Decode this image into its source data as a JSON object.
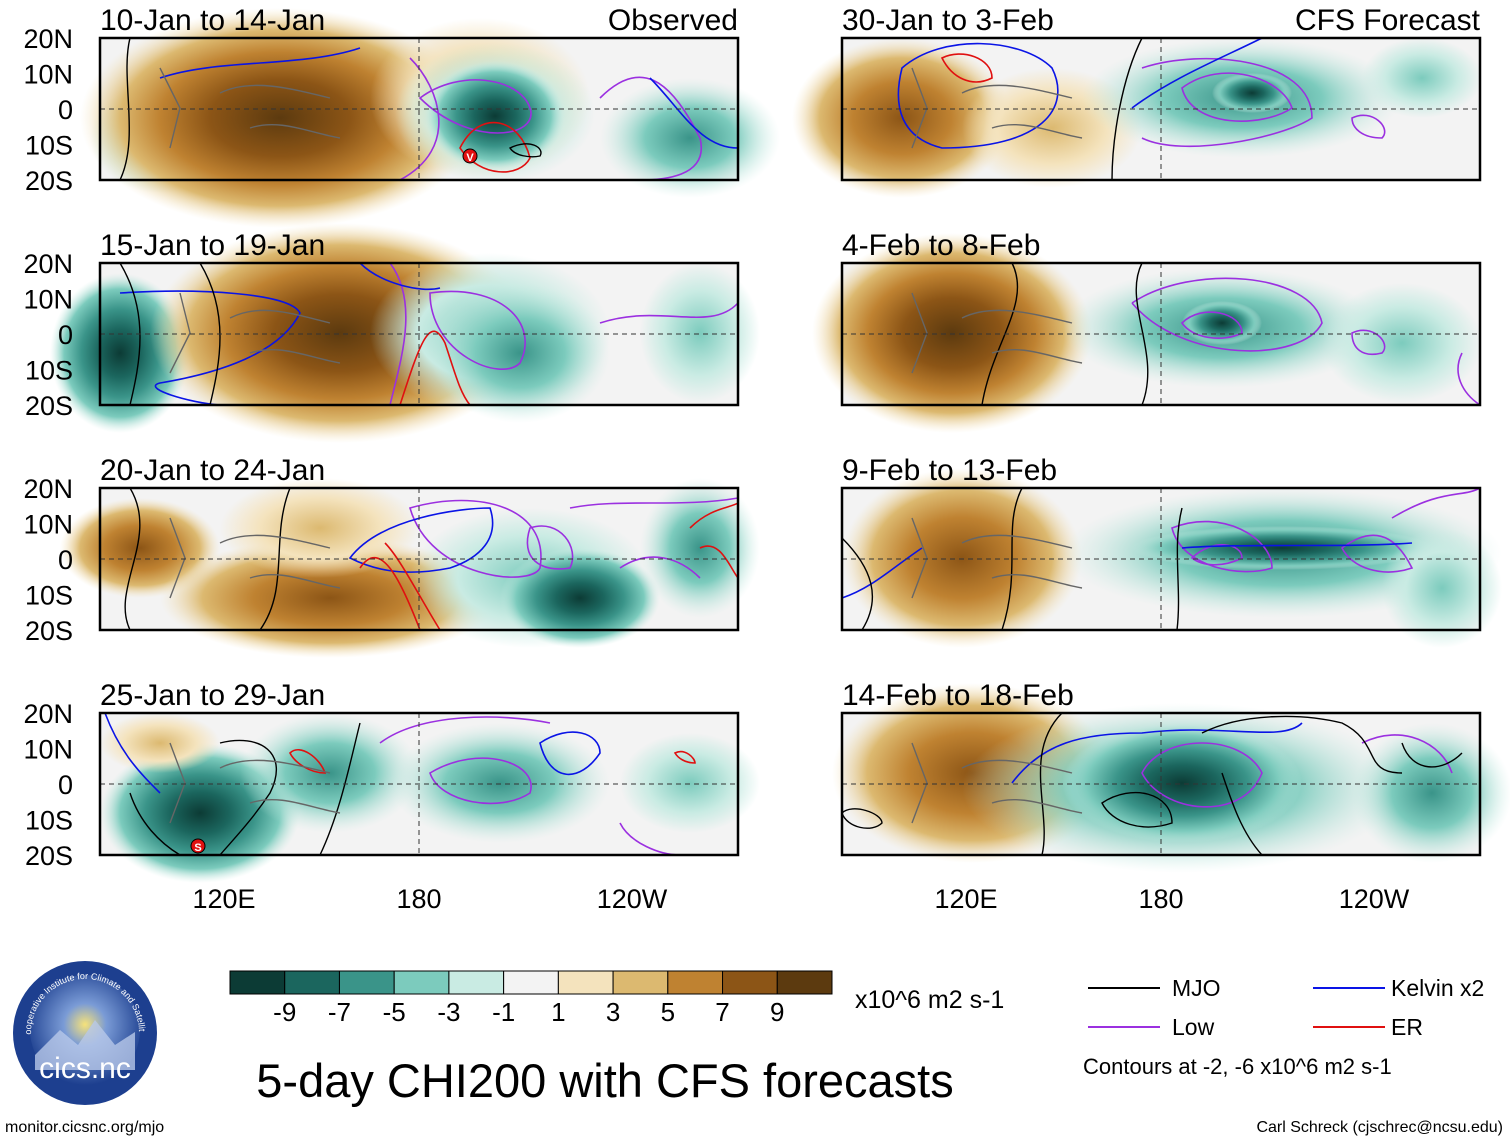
{
  "chart_data": {
    "type": "heatmap",
    "title": "5-day CHI200 with CFS forecasts",
    "variable": "CHI200",
    "units": "x10^6 m2 s-1",
    "colorbar": {
      "labels": [
        "-9",
        "-7",
        "-5",
        "-3",
        "-1",
        "1",
        "3",
        "5",
        "7",
        "9"
      ],
      "colors": [
        "#0c3b35",
        "#1b665e",
        "#3a9489",
        "#7ccbbd",
        "#c9ebe3",
        "#f3f3f3",
        "#f4e3bd",
        "#dcb970",
        "#bf8231",
        "#8c5516",
        "#5c3a0f"
      ]
    },
    "x_ticks": [
      "120E",
      "180",
      "120W"
    ],
    "y_ticks": [
      "20N",
      "10N",
      "0",
      "10S",
      "20S"
    ],
    "panel_titles": {
      "observed": "Observed",
      "forecast": "CFS Forecast"
    },
    "panels": [
      {
        "id": "p1",
        "period": "10-Jan to 14-Jan",
        "source": "Observed",
        "marker": "V"
      },
      {
        "id": "p2",
        "period": "15-Jan to 19-Jan",
        "source": "Observed",
        "marker": ""
      },
      {
        "id": "p3",
        "period": "20-Jan to 24-Jan",
        "source": "Observed",
        "marker": ""
      },
      {
        "id": "p4",
        "period": "25-Jan to 29-Jan",
        "source": "Observed",
        "marker": "S"
      },
      {
        "id": "p5",
        "period": "30-Jan to 3-Feb",
        "source": "CFS Forecast",
        "marker": ""
      },
      {
        "id": "p6",
        "period": "4-Feb to 8-Feb",
        "source": "CFS Forecast",
        "marker": ""
      },
      {
        "id": "p7",
        "period": "9-Feb to 13-Feb",
        "source": "CFS Forecast",
        "marker": ""
      },
      {
        "id": "p8",
        "period": "14-Feb to 18-Feb",
        "source": "CFS Forecast",
        "marker": ""
      }
    ],
    "legend": [
      {
        "label": "MJO",
        "color": "#000000"
      },
      {
        "label": "Kelvin x2",
        "color": "#0a14e6"
      },
      {
        "label": "Low",
        "color": "#9b30e0"
      },
      {
        "label": "ER",
        "color": "#e01010"
      }
    ],
    "contour_note": "Contours at -2, -6 x10^6 m2 s-1"
  },
  "footer": {
    "logo_text": "cics.nc",
    "logo_ring_text": "Cooperative Institute for Climate and Satellites",
    "url": "monitor.cicsnc.org/mjo",
    "credit": "Carl Schreck (cjschrec@ncsu.edu)"
  }
}
